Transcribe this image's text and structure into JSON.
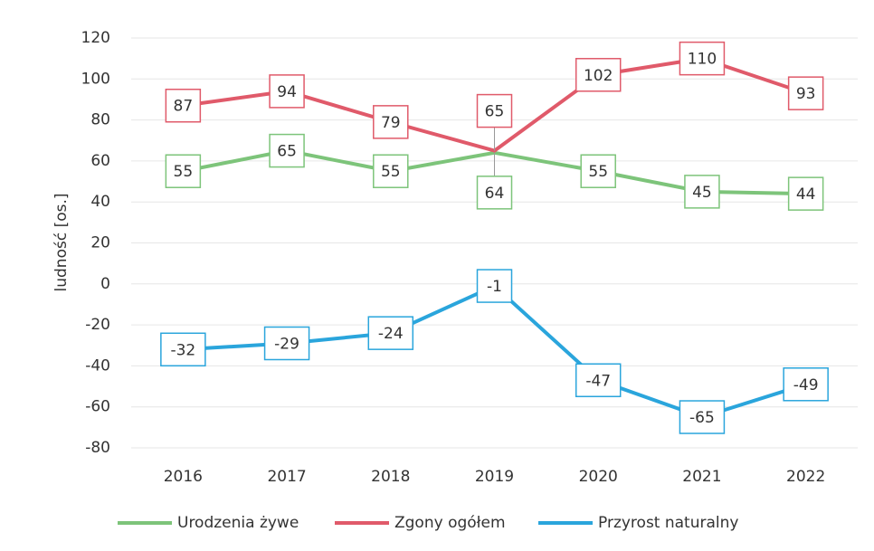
{
  "chart_data": {
    "type": "line",
    "y_label": "ludność [os.]",
    "categories": [
      "2016",
      "2017",
      "2018",
      "2019",
      "2020",
      "2021",
      "2022"
    ],
    "series": [
      {
        "name": "Urodzenia żywe",
        "color": "#7dc47a",
        "values": [
          55,
          65,
          55,
          64,
          55,
          45,
          44
        ]
      },
      {
        "name": "Zgony ogółem",
        "color": "#e05a6a",
        "values": [
          87,
          94,
          79,
          65,
          102,
          110,
          93
        ]
      },
      {
        "name": "Przyrost naturalny",
        "color": "#2aa5dc",
        "values": [
          -32,
          -29,
          -24,
          -1,
          -47,
          -65,
          -49
        ]
      }
    ],
    "ylim": [
      -80,
      120
    ],
    "yticks": [
      -80,
      -60,
      -40,
      -20,
      0,
      20,
      40,
      60,
      80,
      100,
      120
    ],
    "grid": true,
    "legend": "bottom"
  }
}
